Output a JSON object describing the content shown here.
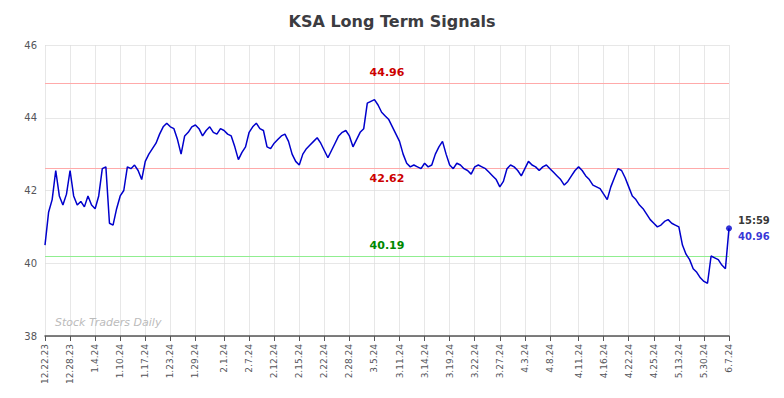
{
  "chart_data": {
    "type": "line",
    "title": "KSA Long Term Signals",
    "categories": [
      "12.22.23",
      null,
      null,
      null,
      null,
      null,
      null,
      "12.28.23",
      null,
      null,
      null,
      null,
      null,
      null,
      "1.4.24",
      null,
      null,
      null,
      null,
      null,
      null,
      "1.10.24",
      null,
      null,
      null,
      null,
      null,
      null,
      "1.17.24",
      null,
      null,
      null,
      null,
      null,
      null,
      "1.23.24",
      null,
      null,
      null,
      null,
      null,
      null,
      "1.29.24",
      null,
      null,
      null,
      null,
      null,
      null,
      null,
      "2.1.24",
      null,
      null,
      null,
      null,
      null,
      null,
      "2.7.24",
      null,
      null,
      null,
      null,
      null,
      null,
      "2.12.24",
      null,
      null,
      null,
      null,
      null,
      null,
      "2.15.24",
      null,
      null,
      null,
      null,
      null,
      null,
      "2.22.24",
      null,
      null,
      null,
      null,
      null,
      null,
      "2.28.24",
      null,
      null,
      null,
      null,
      null,
      null,
      "3.5.24",
      null,
      null,
      null,
      null,
      null,
      null,
      "3.11.24",
      null,
      null,
      null,
      null,
      null,
      null,
      "3.14.24",
      null,
      null,
      null,
      null,
      null,
      null,
      "3.19.24",
      null,
      null,
      null,
      null,
      null,
      null,
      "3.22.24",
      null,
      null,
      null,
      null,
      null,
      null,
      "3.27.24",
      null,
      null,
      null,
      null,
      null,
      null,
      "4.3.24",
      null,
      null,
      null,
      null,
      null,
      null,
      "4.8.24",
      null,
      null,
      null,
      null,
      null,
      null,
      null,
      "4.11.24",
      null,
      null,
      null,
      null,
      null,
      null,
      "4.16.24",
      null,
      null,
      null,
      null,
      null,
      null,
      "4.22.24",
      null,
      null,
      null,
      null,
      null,
      null,
      "4.25.24",
      null,
      null,
      null,
      null,
      null,
      null,
      "5.13.24",
      null,
      null,
      null,
      null,
      null,
      null,
      "5.30.24",
      null,
      null,
      null,
      null,
      null,
      null,
      "6.7.24"
    ],
    "values": [
      40.5,
      41.4,
      41.75,
      42.55,
      41.85,
      41.6,
      41.9,
      42.55,
      41.85,
      41.6,
      41.7,
      41.55,
      41.85,
      41.6,
      41.5,
      41.85,
      42.6,
      42.65,
      41.1,
      41.05,
      41.5,
      41.85,
      42.0,
      42.65,
      42.6,
      42.7,
      42.55,
      42.3,
      42.8,
      43.0,
      43.15,
      43.3,
      43.55,
      43.75,
      43.85,
      43.75,
      43.7,
      43.4,
      43.0,
      43.5,
      43.6,
      43.75,
      43.8,
      43.7,
      43.5,
      43.65,
      43.75,
      43.6,
      43.55,
      43.7,
      43.65,
      43.55,
      43.5,
      43.2,
      42.85,
      43.05,
      43.2,
      43.6,
      43.75,
      43.85,
      43.7,
      43.65,
      43.2,
      43.15,
      43.3,
      43.4,
      43.5,
      43.55,
      43.35,
      43.0,
      42.8,
      42.7,
      43.0,
      43.15,
      43.25,
      43.35,
      43.45,
      43.3,
      43.1,
      42.9,
      43.1,
      43.3,
      43.5,
      43.6,
      43.65,
      43.5,
      43.2,
      43.4,
      43.6,
      43.7,
      44.4,
      44.45,
      44.5,
      44.35,
      44.15,
      44.05,
      43.95,
      43.75,
      43.55,
      43.35,
      43.0,
      42.75,
      42.65,
      42.7,
      42.65,
      42.6,
      42.75,
      42.65,
      42.7,
      43.0,
      43.2,
      43.35,
      43.0,
      42.7,
      42.6,
      42.75,
      42.7,
      42.6,
      42.55,
      42.45,
      42.65,
      42.7,
      42.65,
      42.6,
      42.5,
      42.4,
      42.3,
      42.1,
      42.25,
      42.6,
      42.7,
      42.65,
      42.55,
      42.4,
      42.6,
      42.8,
      42.7,
      42.65,
      42.55,
      42.65,
      42.7,
      42.6,
      42.5,
      42.4,
      42.3,
      42.15,
      42.25,
      42.4,
      42.55,
      42.65,
      42.55,
      42.4,
      42.3,
      42.15,
      42.1,
      42.05,
      41.9,
      41.75,
      42.1,
      42.35,
      42.6,
      42.55,
      42.35,
      42.1,
      41.85,
      41.75,
      41.6,
      41.5,
      41.35,
      41.2,
      41.1,
      41.0,
      41.05,
      41.15,
      41.2,
      41.1,
      41.05,
      41.0,
      40.5,
      40.25,
      40.1,
      39.85,
      39.75,
      39.6,
      39.5,
      39.45,
      40.2,
      40.15,
      40.1,
      39.95,
      39.85,
      40.96
    ],
    "color": "#0000cc",
    "ylim": [
      38,
      46
    ],
    "yticks": [
      38,
      40,
      42,
      44,
      46
    ],
    "grid": true,
    "reference_lines": [
      {
        "y": 44.96,
        "color": "#ffaaaa",
        "label": "44.96",
        "label_color": "#cc0000"
      },
      {
        "y": 42.62,
        "color": "#ffaaaa",
        "label": "42.62",
        "label_color": "#cc0000"
      },
      {
        "y": 40.19,
        "color": "#90ee90",
        "label": "40.19",
        "label_color": "#008800"
      }
    ],
    "end_label": {
      "time": "15:59",
      "time_color": "#000000",
      "price": "40.96",
      "price_color": "#0000cc"
    },
    "watermark": {
      "text": "Stock Traders Daily",
      "color": "#bbbbbb"
    }
  }
}
